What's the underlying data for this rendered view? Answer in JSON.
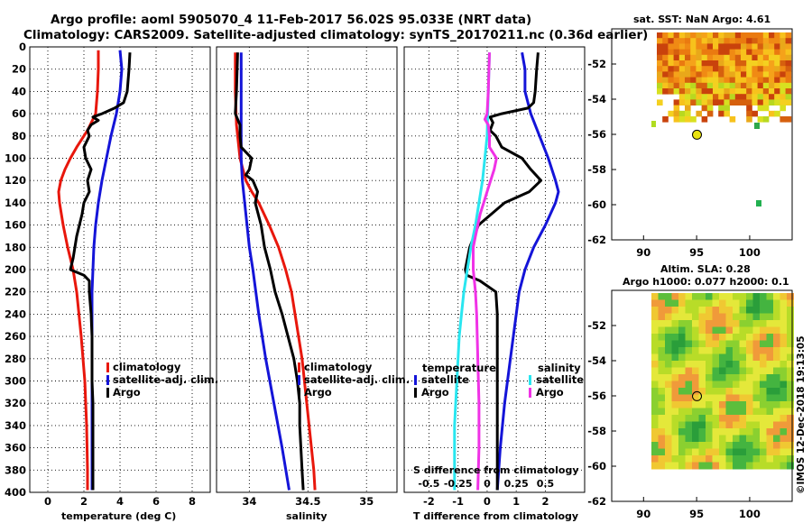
{
  "header": {
    "line1": "Argo profile: aoml 5905070_4 11-Feb-2017 56.02S 95.033E (NRT data)",
    "line2": "Climatology: CARS2009. Satellite-adjusted climatology: synTS_20170211.nc (0.36d earlier)"
  },
  "timestamp": "©IMOS 12-Dec-2018 19:13:05",
  "colors": {
    "climatology": "#e8170c",
    "satellite": "#1414d8",
    "argo": "#000000",
    "sat_salinity": "#29e6f0",
    "argo_salinity_diff": "#f032e6"
  },
  "chart_data": [
    {
      "name": "temperature-profile",
      "type": "line",
      "xlabel": "temperature (deg C)",
      "xticks": [
        "0",
        "2",
        "4",
        "6",
        "8"
      ],
      "xlim": [
        -1,
        9
      ],
      "ylim": [
        400,
        0
      ],
      "yticks": [
        "0",
        "20",
        "40",
        "60",
        "80",
        "100",
        "120",
        "140",
        "160",
        "180",
        "200",
        "220",
        "240",
        "260",
        "280",
        "300",
        "320",
        "340",
        "360",
        "380",
        "400"
      ],
      "legend": [
        "climatology",
        "satellite-adj. clim.",
        "Argo"
      ],
      "series": [
        {
          "name": "climatology",
          "color": "#e8170c",
          "depth": [
            3,
            20,
            40,
            60,
            75,
            90,
            100,
            110,
            120,
            130,
            140,
            160,
            180,
            200,
            220,
            260,
            300,
            340,
            380,
            398
          ],
          "values": [
            2.8,
            2.8,
            2.75,
            2.65,
            2.2,
            1.6,
            1.25,
            0.95,
            0.72,
            0.6,
            0.65,
            0.85,
            1.1,
            1.4,
            1.6,
            1.85,
            2.05,
            2.15,
            2.2,
            2.2
          ]
        },
        {
          "name": "satellite-adj. clim.",
          "color": "#1414d8",
          "depth": [
            3,
            20,
            40,
            60,
            80,
            100,
            120,
            140,
            160,
            180,
            200,
            220,
            260,
            300,
            340,
            380,
            398
          ],
          "values": [
            4.0,
            4.1,
            4.0,
            3.8,
            3.5,
            3.25,
            3.0,
            2.8,
            2.65,
            2.55,
            2.5,
            2.45,
            2.45,
            2.45,
            2.45,
            2.45,
            2.45
          ]
        },
        {
          "name": "Argo",
          "color": "#000000",
          "depth": [
            5,
            20,
            40,
            50,
            55,
            60,
            63,
            66,
            70,
            75,
            80,
            90,
            100,
            110,
            120,
            130,
            140,
            150,
            160,
            170,
            180,
            190,
            200,
            205,
            210,
            220,
            240,
            260,
            280,
            300,
            320,
            340,
            360,
            380,
            398
          ],
          "values": [
            4.55,
            4.5,
            4.4,
            4.2,
            3.7,
            3.0,
            2.5,
            2.8,
            2.4,
            2.2,
            2.3,
            2.0,
            2.1,
            2.4,
            2.2,
            2.3,
            2.0,
            1.9,
            1.75,
            1.6,
            1.5,
            1.4,
            1.25,
            2.0,
            2.3,
            2.3,
            2.4,
            2.45,
            2.45,
            2.45,
            2.5,
            2.5,
            2.5,
            2.5,
            2.5
          ]
        }
      ]
    },
    {
      "name": "salinity-profile",
      "type": "line",
      "xlabel": "salinity",
      "xticks": [
        "34",
        "34.5",
        "35"
      ],
      "xlim": [
        33.72,
        35.26
      ],
      "ylim": [
        400,
        0
      ],
      "legend": [
        "climatology",
        "satellite-adj. clim.",
        "Argo"
      ],
      "series": [
        {
          "name": "climatology",
          "color": "#e8170c",
          "depth": [
            5,
            40,
            70,
            100,
            120,
            130,
            140,
            160,
            180,
            200,
            220,
            240,
            260,
            280,
            300,
            320,
            340,
            360,
            380,
            398
          ],
          "values": [
            33.88,
            33.88,
            33.89,
            33.92,
            33.97,
            34.02,
            34.08,
            34.17,
            34.25,
            34.31,
            34.36,
            34.39,
            34.42,
            34.45,
            34.47,
            34.49,
            34.51,
            34.53,
            34.55,
            34.56
          ]
        },
        {
          "name": "satellite-adj. clim.",
          "color": "#1414d8",
          "depth": [
            5,
            40,
            80,
            100,
            120,
            140,
            160,
            180,
            200,
            240,
            280,
            320,
            360,
            398
          ],
          "values": [
            33.93,
            33.93,
            33.93,
            33.93,
            33.94,
            33.96,
            33.98,
            34.0,
            34.03,
            34.08,
            34.14,
            34.21,
            34.28,
            34.34
          ]
        },
        {
          "name": "Argo",
          "color": "#000000",
          "depth": [
            5,
            40,
            60,
            70,
            80,
            90,
            100,
            110,
            115,
            120,
            130,
            140,
            160,
            180,
            200,
            220,
            240,
            260,
            280,
            300,
            320,
            340,
            360,
            380,
            398
          ],
          "values": [
            33.9,
            33.89,
            33.88,
            33.92,
            33.92,
            33.93,
            34.02,
            34.0,
            33.97,
            34.03,
            34.07,
            34.05,
            34.1,
            34.13,
            34.18,
            34.22,
            34.28,
            34.33,
            34.38,
            34.41,
            34.43,
            34.43,
            34.44,
            34.45,
            34.46
          ]
        }
      ]
    },
    {
      "name": "difference-profile",
      "type": "line",
      "xlabel": "T difference from climatology",
      "xticks": [
        "-2",
        "-1",
        "0",
        "1",
        "2"
      ],
      "xlim": [
        -2.85,
        3.35
      ],
      "ylim": [
        400,
        0
      ],
      "s_axis": {
        "label": "S difference from climatology",
        "ticks": [
          "-0.5",
          "-0.25",
          "0",
          "0.25",
          "0.5"
        ],
        "xlim": [
          -0.7125,
          0.8375
        ]
      },
      "legend_temperature": {
        "title": "temperature",
        "items": [
          "satellite",
          "Argo"
        ]
      },
      "legend_salinity": {
        "title": "salinity",
        "items": [
          "satellite",
          "Argo"
        ]
      },
      "series": [
        {
          "name": "temperature satellite",
          "color": "#1414d8",
          "depth": [
            5,
            20,
            40,
            60,
            80,
            100,
            120,
            130,
            140,
            160,
            180,
            200,
            220,
            240,
            280,
            320,
            360,
            398
          ],
          "values": [
            1.2,
            1.3,
            1.3,
            1.5,
            1.8,
            2.1,
            2.35,
            2.45,
            2.35,
            2.0,
            1.6,
            1.3,
            1.1,
            1.0,
            0.8,
            0.6,
            0.45,
            0.35
          ]
        },
        {
          "name": "temperature Argo",
          "color": "#000000",
          "depth": [
            5,
            20,
            40,
            50,
            55,
            60,
            63,
            68,
            75,
            80,
            90,
            100,
            110,
            120,
            130,
            140,
            160,
            180,
            200,
            205,
            210,
            220,
            240,
            280,
            320,
            360,
            398
          ],
          "values": [
            1.75,
            1.7,
            1.65,
            1.6,
            1.4,
            0.5,
            0.1,
            0.2,
            0.1,
            0.3,
            0.5,
            1.2,
            1.5,
            1.85,
            1.45,
            0.6,
            -0.3,
            -0.6,
            -0.75,
            -0.7,
            -0.25,
            0.3,
            0.35,
            0.35,
            0.35,
            0.35,
            0.35
          ]
        },
        {
          "name": "salinity satellite",
          "color": "#29e6f0",
          "depth": [
            5,
            40,
            80,
            100,
            120,
            140,
            160,
            180,
            200,
            220,
            240,
            260,
            280,
            300,
            320,
            340,
            360,
            380,
            398
          ],
          "values": [
            0.02,
            0.01,
            0.0,
            -0.02,
            -0.04,
            -0.07,
            -0.1,
            -0.14,
            -0.17,
            -0.2,
            -0.22,
            -0.24,
            -0.25,
            -0.26,
            -0.27,
            -0.28,
            -0.28,
            -0.28,
            -0.28
          ]
        },
        {
          "name": "salinity Argo",
          "color": "#f032e6",
          "depth": [
            5,
            40,
            60,
            65,
            70,
            80,
            90,
            100,
            110,
            120,
            130,
            140,
            150,
            160,
            170,
            180,
            200,
            220,
            240,
            280,
            320,
            360,
            398
          ],
          "values": [
            0.02,
            0.01,
            0.0,
            -0.02,
            0.01,
            0.02,
            0.02,
            0.08,
            0.06,
            0.03,
            0.0,
            -0.03,
            -0.06,
            -0.08,
            -0.1,
            -0.12,
            -0.12,
            -0.1,
            -0.09,
            -0.08,
            -0.07,
            -0.07,
            -0.08
          ]
        }
      ]
    },
    {
      "name": "sst-map",
      "type": "heatmap",
      "title": "sat. SST: NaN Argo: 4.61",
      "xticks": [
        "90",
        "95",
        "100"
      ],
      "yticks": [
        "-52",
        "-54",
        "-56",
        "-58",
        "-60",
        "-62"
      ],
      "xlim": [
        87,
        104
      ],
      "ylim": [
        -62,
        -50
      ],
      "marker": {
        "lon": 95.033,
        "lat": -56.02
      }
    },
    {
      "name": "sla-map",
      "type": "heatmap",
      "title_line1": "Altim. SLA: 0.28",
      "title_line2": "Argo h1000: 0.077 h2000: 0.1",
      "xticks": [
        "90",
        "95",
        "100"
      ],
      "yticks": [
        "-52",
        "-54",
        "-56",
        "-58",
        "-60",
        "-62"
      ],
      "xlim": [
        87,
        104
      ],
      "ylim": [
        -62,
        -50
      ],
      "marker": {
        "lon": 95.033,
        "lat": -56.02
      }
    }
  ]
}
